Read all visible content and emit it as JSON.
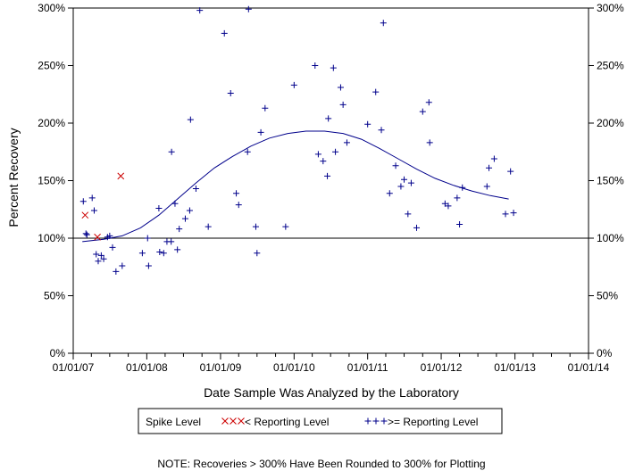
{
  "chart_data": {
    "type": "scatter",
    "xlabel": "Date Sample Was Analyzed by the Laboratory",
    "ylabel": "Percent Recovery",
    "x_ticks": [
      "01/01/07",
      "01/01/08",
      "01/01/09",
      "01/01/10",
      "01/01/11",
      "01/01/12",
      "01/01/13",
      "01/01/14"
    ],
    "xlim": [
      "2007-01-01",
      "2014-01-01"
    ],
    "y_ticks": [
      "0%",
      "50%",
      "100%",
      "150%",
      "200%",
      "250%",
      "300%"
    ],
    "ylim": [
      0,
      300
    ],
    "reference_line": 100,
    "legend": {
      "title": "Spike Level",
      "placement": "bottom",
      "below_label": "< Reporting Level",
      "above_label": ">= Reporting Level"
    },
    "colors": {
      "below": "#cc0000",
      "above": "#00008b",
      "trend": "#00008b",
      "axis": "#000000"
    },
    "series": [
      {
        "name": "< Reporting Level",
        "marker": "x",
        "points": [
          [
            "2007-03-01",
            120
          ],
          [
            "2007-05-01",
            101
          ],
          [
            "2007-08-25",
            154
          ]
        ]
      },
      {
        "name": ">= Reporting Level",
        "marker": "+",
        "points": [
          [
            "2007-02-20",
            132
          ],
          [
            "2007-03-05",
            104
          ],
          [
            "2007-03-10",
            103
          ],
          [
            "2007-04-05",
            135
          ],
          [
            "2007-04-15",
            124
          ],
          [
            "2007-04-25",
            86
          ],
          [
            "2007-05-05",
            80
          ],
          [
            "2007-05-20",
            85
          ],
          [
            "2007-06-01",
            82
          ],
          [
            "2007-06-20",
            101
          ],
          [
            "2007-07-01",
            102
          ],
          [
            "2007-07-15",
            92
          ],
          [
            "2007-08-01",
            71
          ],
          [
            "2007-09-01",
            76
          ],
          [
            "2007-12-10",
            87
          ],
          [
            "2008-01-05",
            100
          ],
          [
            "2008-01-10",
            76
          ],
          [
            "2008-03-01",
            126
          ],
          [
            "2008-03-05",
            88
          ],
          [
            "2008-03-25",
            87
          ],
          [
            "2008-04-10",
            97
          ],
          [
            "2008-05-01",
            97
          ],
          [
            "2008-05-03",
            175
          ],
          [
            "2008-05-20",
            130
          ],
          [
            "2008-06-01",
            90
          ],
          [
            "2008-06-10",
            108
          ],
          [
            "2008-07-10",
            117
          ],
          [
            "2008-08-01",
            124
          ],
          [
            "2008-08-05",
            203
          ],
          [
            "2008-09-01",
            143
          ],
          [
            "2008-09-20",
            298
          ],
          [
            "2008-11-01",
            110
          ],
          [
            "2009-01-20",
            278
          ],
          [
            "2009-02-20",
            226
          ],
          [
            "2009-03-20",
            139
          ],
          [
            "2009-04-01",
            129
          ],
          [
            "2009-05-15",
            175
          ],
          [
            "2009-05-20",
            299
          ],
          [
            "2009-06-25",
            110
          ],
          [
            "2009-07-01",
            87
          ],
          [
            "2009-07-20",
            192
          ],
          [
            "2009-08-10",
            213
          ],
          [
            "2009-11-20",
            110
          ],
          [
            "2010-01-01",
            233
          ],
          [
            "2010-04-15",
            250
          ],
          [
            "2010-05-01",
            173
          ],
          [
            "2010-05-25",
            167
          ],
          [
            "2010-06-15",
            154
          ],
          [
            "2010-06-20",
            204
          ],
          [
            "2010-07-15",
            248
          ],
          [
            "2010-07-25",
            175
          ],
          [
            "2010-08-20",
            231
          ],
          [
            "2010-09-01",
            216
          ],
          [
            "2010-09-20",
            183
          ],
          [
            "2011-01-01",
            199
          ],
          [
            "2011-02-10",
            227
          ],
          [
            "2011-03-10",
            194
          ],
          [
            "2011-03-20",
            287
          ],
          [
            "2011-04-20",
            139
          ],
          [
            "2011-05-20",
            163
          ],
          [
            "2011-06-15",
            145
          ],
          [
            "2011-07-01",
            151
          ],
          [
            "2011-07-20",
            121
          ],
          [
            "2011-08-05",
            148
          ],
          [
            "2011-09-01",
            109
          ],
          [
            "2011-10-01",
            210
          ],
          [
            "2011-11-01",
            218
          ],
          [
            "2011-11-05",
            183
          ],
          [
            "2012-01-20",
            130
          ],
          [
            "2012-02-05",
            128
          ],
          [
            "2012-03-20",
            135
          ],
          [
            "2012-04-01",
            112
          ],
          [
            "2012-04-15",
            144
          ],
          [
            "2012-08-15",
            145
          ],
          [
            "2012-08-25",
            161
          ],
          [
            "2012-09-20",
            169
          ],
          [
            "2012-11-15",
            121
          ],
          [
            "2012-12-10",
            158
          ],
          [
            "2012-12-25",
            122
          ]
        ]
      },
      {
        "name": "trend",
        "marker": "line",
        "points": [
          [
            "2007-02-15",
            97
          ],
          [
            "2007-06-01",
            99
          ],
          [
            "2007-09-01",
            102
          ],
          [
            "2007-12-01",
            109
          ],
          [
            "2008-03-01",
            120
          ],
          [
            "2008-06-01",
            134
          ],
          [
            "2008-09-01",
            148
          ],
          [
            "2008-12-01",
            161
          ],
          [
            "2009-03-01",
            171
          ],
          [
            "2009-06-01",
            180
          ],
          [
            "2009-09-01",
            187
          ],
          [
            "2009-12-01",
            191
          ],
          [
            "2010-03-01",
            193
          ],
          [
            "2010-06-01",
            193
          ],
          [
            "2010-09-01",
            191
          ],
          [
            "2010-12-01",
            186
          ],
          [
            "2011-03-01",
            178
          ],
          [
            "2011-06-01",
            169
          ],
          [
            "2011-09-01",
            160
          ],
          [
            "2011-12-01",
            152
          ],
          [
            "2012-03-01",
            146
          ],
          [
            "2012-06-01",
            141
          ],
          [
            "2012-09-01",
            137
          ],
          [
            "2012-12-01",
            134
          ]
        ]
      }
    ]
  },
  "note": "NOTE: Recoveries > 300% Have Been Rounded to 300% for Plotting"
}
